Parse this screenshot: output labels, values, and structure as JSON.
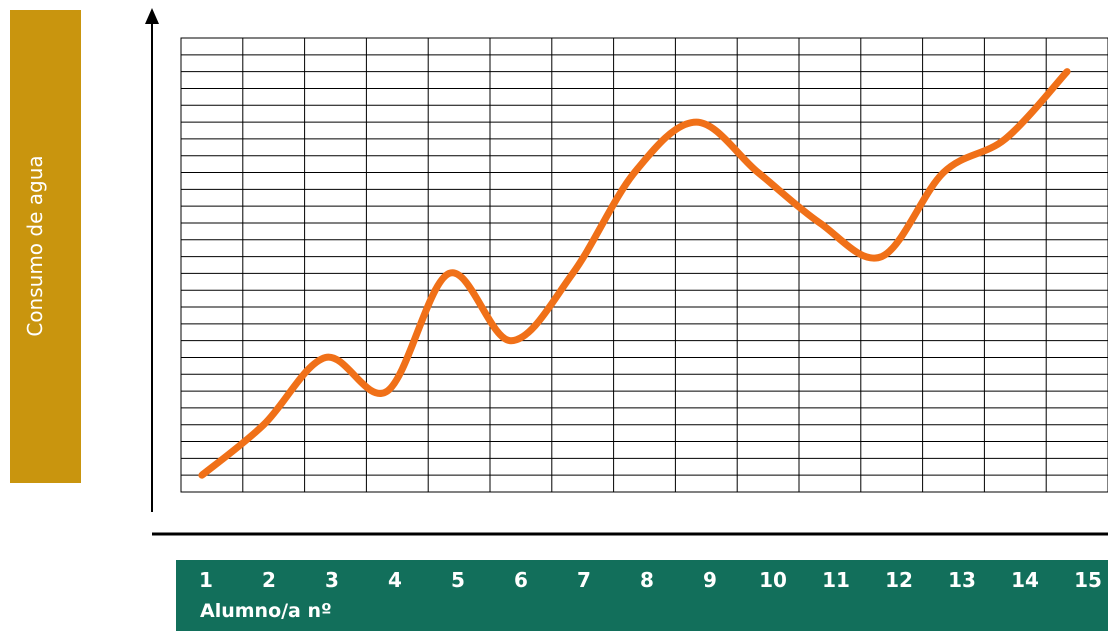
{
  "chart_data": {
    "type": "line",
    "ylabel": "Consumo de agua",
    "xlabel": "Alumno/a nº",
    "x": [
      "1",
      "2",
      "3",
      "4",
      "5",
      "6",
      "7",
      "8",
      "9",
      "10",
      "11",
      "12",
      "13",
      "14",
      "15"
    ],
    "series": [
      {
        "values": [
          1,
          4,
          8,
          6,
          13,
          9,
          13,
          19,
          22,
          19,
          16,
          14,
          19,
          21,
          25
        ]
      }
    ],
    "ylim": [
      0,
      27
    ],
    "grid": true,
    "colors": {
      "line": "#F07018",
      "ylabel_box": "#C9950E",
      "xlabel_bar": "#126F5B",
      "grid": "#000000"
    }
  }
}
